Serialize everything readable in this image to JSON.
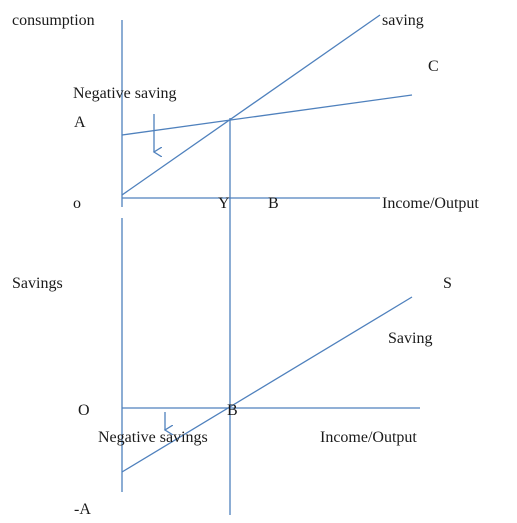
{
  "top_panel": {
    "y_axis_label": "consumption",
    "saving_line_label": "saving",
    "consumption_line_label": "C",
    "negative_saving_label": "Negative saving",
    "point_a_label": "A",
    "origin_label": "o",
    "point_y_label": "Y",
    "point_b_label": "B",
    "x_axis_label": "Income/Output"
  },
  "bottom_panel": {
    "y_axis_label": "Savings",
    "savings_line_label": "S",
    "savings_curve_label": "Saving",
    "origin_label": "O",
    "point_b_label": "B",
    "negative_savings_label": "Negative savings",
    "x_axis_label": "Income/Output",
    "point_neg_a_label": "-A"
  },
  "colors": {
    "lines": "#4f81bd",
    "text": "#1a1a1a"
  }
}
